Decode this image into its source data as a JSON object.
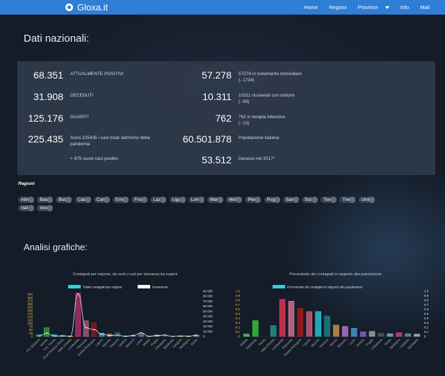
{
  "navbar": {
    "brand": "Gloxa.it",
    "links": [
      "Home",
      "Regioni",
      "Province",
      "Info",
      "Mail"
    ]
  },
  "dati": {
    "title": "Dati nazionali:",
    "left": [
      {
        "value": "68.351",
        "label": "ATTUALMENTE POSITIVI",
        "sub": ""
      },
      {
        "value": "31.908",
        "label": "DECEDUTI",
        "sub": ""
      },
      {
        "value": "125.176",
        "label": "GUARITI",
        "sub": ""
      },
      {
        "value": "225.435",
        "label": "Sono 225435 i casi totali dall'inizio della",
        "sub": "pandemia"
      },
      {
        "value": "",
        "label": "+ 675 nuovi casi positivi",
        "sub": ""
      }
    ],
    "right": [
      {
        "value": "57.278",
        "label": "57278 in isolamento domiciliare",
        "sub": "(- 1734)"
      },
      {
        "value": "10.311",
        "label": "10311 ricoverati con sintomi",
        "sub": "(- 89)"
      },
      {
        "value": "762",
        "label": "762 in terapia intensiva",
        "sub": "(- 13)"
      },
      {
        "value": "60.501.878",
        "label": "Popolazione italiana",
        "sub": ""
      },
      {
        "value": "53.512",
        "label": "Decessi nel 2017*",
        "sub": ""
      }
    ]
  },
  "regioni": {
    "title": "Regioni",
    "items": [
      "Abru",
      "Basi",
      "Bolz",
      "Cala",
      "Camp",
      "Emil",
      "Friu",
      "Lazi",
      "Ligu",
      "Lomb",
      "Marc",
      "Moli",
      "Piem",
      "Pugl",
      "Sard",
      "Sici",
      "Tosc",
      "Tren",
      "Umbr",
      "Vall",
      "Vene"
    ]
  },
  "analisi": {
    "title": "Analisi grafiche:"
  },
  "chart_data": [
    {
      "type": "bar",
      "title": "Contagiati per regione, da nord a sud per vicinanza tra regioni",
      "categories": [
        "P.A. Bolzano",
        "Veneto",
        "P.A. Trento",
        "Friuli Venezia Giulia",
        "Valle d'Aosta",
        "Lombardia",
        "Piemonte",
        "Emilia-Romagna",
        "Liguria",
        "Marche",
        "Toscana",
        "Umbria",
        "Abruzzo",
        "Lazio",
        "Molise",
        "Puglia",
        "Campania",
        "Basilicata",
        "Calabria",
        "Sardegna",
        "Sicilia"
      ],
      "series": [
        {
          "name": "Totale contagiati per regione",
          "axis": "left",
          "values": [
            14,
            67,
            14,
            10,
            3,
            335,
            120,
            105,
            25,
            18,
            28,
            4,
            10,
            25,
            2,
            10,
            14,
            1,
            3,
            4,
            10
          ],
          "colors": [
            "#2a9d8f",
            "#3ecf3e",
            "#1fbfbf",
            "#3a7bd5",
            "#e6c229",
            "#f23b8c",
            "#e07a9a",
            "#b31b1b",
            "#29d3e6",
            "#d99e4a",
            "#1f8a8a",
            "#4aa3df",
            "#8e6bd6",
            "#c27dd6",
            "#6fd36f",
            "#b0b0b0",
            "#5a5a5a",
            "#8fb3e6",
            "#ffb347",
            "#7aa37a",
            "#d7aefb"
          ]
        },
        {
          "name": "Incremento",
          "axis": "right",
          "style": "line",
          "values": [
            1,
            7,
            1,
            1,
            0,
            94,
            19,
            15,
            5,
            2,
            3,
            0,
            2,
            8,
            0,
            2,
            3,
            0,
            1,
            0,
            3
          ]
        }
      ],
      "left_ticks": [
        0,
        25,
        50,
        75,
        100,
        125,
        150,
        175,
        200,
        225,
        250,
        275,
        300,
        325
      ],
      "left_ticks_label": [
        "0",
        "25",
        "50",
        "75",
        "100",
        "125",
        "150",
        "175",
        "200",
        "225",
        "250",
        "275",
        "300",
        "325"
      ],
      "right_ticks_label": [
        "0",
        "10 000",
        "20 000",
        "30 000",
        "40 000",
        "50 000",
        "60 000",
        "70 000",
        "80 000",
        "90 000"
      ],
      "legend": "top"
    },
    {
      "type": "bar",
      "title": "Percentuale dei contagiati in rapporto alla popolazione",
      "categories": [
        "Molise",
        "Basilicata",
        "Trento",
        "Valle d'Aosta",
        "Lombardia",
        "Piemonte",
        "Emilia-Romagna",
        "Liguria",
        "Marche",
        "Toscana",
        "Veneto",
        "Abruzzo",
        "Lazio",
        "Umbria",
        "Puglia",
        "Campania",
        "Sicilia",
        "Sardegna",
        "Calabria",
        "Sardegna"
      ],
      "series": [
        {
          "name": "Percentuale dei contagiati in rapporto alla popolazione",
          "values": [
            0.05,
            0.35,
            0.0,
            0.24,
            0.82,
            0.78,
            0.62,
            0.55,
            0.55,
            0.45,
            0.25,
            0.22,
            0.18,
            0.1,
            0.11,
            0.07,
            0.06,
            0.08,
            0.06,
            0.05
          ],
          "colors": [
            "#6fd36f",
            "#3ecf3e",
            "#1fbfbf",
            "#2a9d8f",
            "#f2385a",
            "#e07a9a",
            "#b31b1b",
            "#e06080",
            "#29d3e6",
            "#1f8a8a",
            "#d99e4a",
            "#c27dd6",
            "#4aa3df",
            "#8e6bd6",
            "#b0b0b0",
            "#5a5a5a",
            "#8fb3e6",
            "#f23b8c",
            "#7aa37a",
            "#d7aefb"
          ]
        }
      ],
      "left_ticks_label": [
        "0",
        "0.1",
        "0.2",
        "0.3",
        "0.4",
        "0.5",
        "0.6",
        "0.7",
        "0.8",
        "0.9",
        "1.0"
      ],
      "right_ticks_label": [
        "0",
        "0.1",
        "0.2",
        "0.3",
        "0.4",
        "0.5",
        "0.6",
        "0.7",
        "0.8",
        "0.9",
        "1.0"
      ],
      "ylim": [
        0,
        1.0
      ],
      "legend": "top"
    }
  ]
}
